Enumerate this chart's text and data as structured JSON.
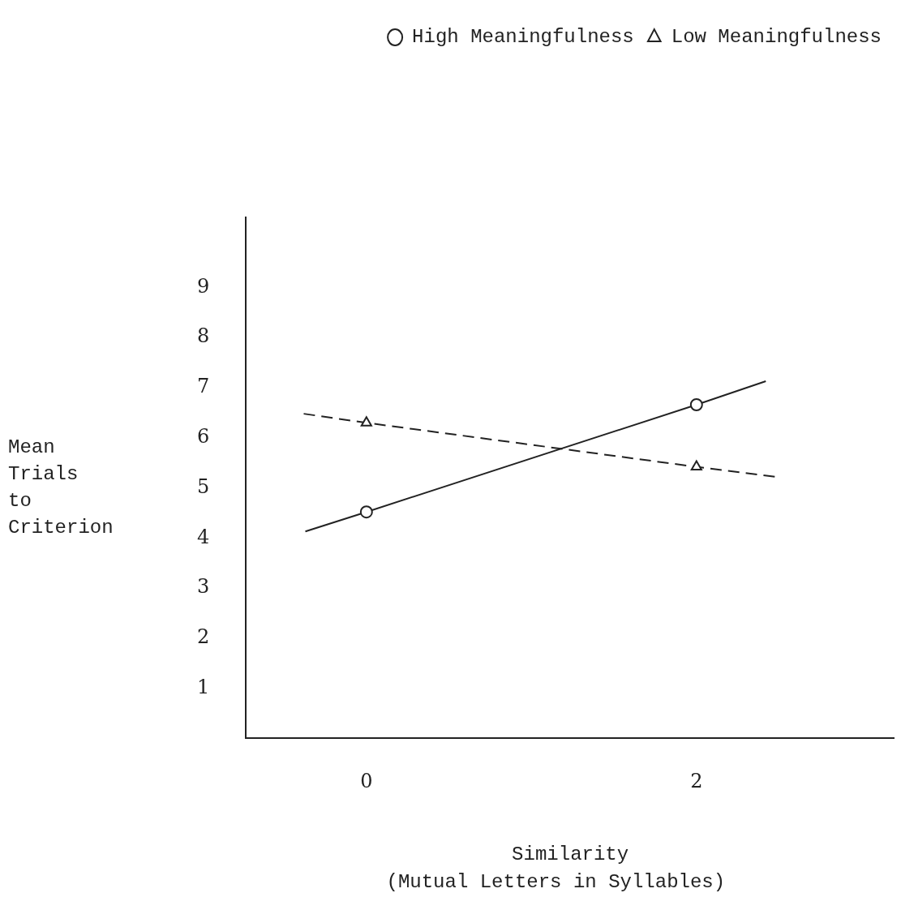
{
  "chart_data": {
    "type": "line",
    "xlabel": "Similarity",
    "ylabel": "Mean Trials to Criterion",
    "annotations": [
      "(Mutual Letters in Syllables)"
    ],
    "xlim": [
      -0.73,
      3.2
    ],
    "xticks": [
      0,
      2
    ],
    "ylim": [
      0,
      10.4
    ],
    "yticks": [
      1,
      2,
      3,
      4,
      5,
      6,
      7,
      8,
      9
    ],
    "grid": false,
    "legend": "top right",
    "series": [
      {
        "name": "High Meaningfulness",
        "color": "#222222",
        "x": [
          -0.37,
          0,
          2,
          2.42
        ],
        "values": [
          4.13,
          4.52,
          6.66,
          7.13
        ],
        "marker": "circle",
        "line_style": "solid"
      },
      {
        "name": "Low Meaningfulness",
        "color": "#222222",
        "x": [
          -0.38,
          0,
          2,
          2.48
        ],
        "values": [
          6.48,
          6.3,
          5.42,
          5.22
        ],
        "marker": "triangle",
        "line_style": "dashed"
      }
    ]
  }
}
